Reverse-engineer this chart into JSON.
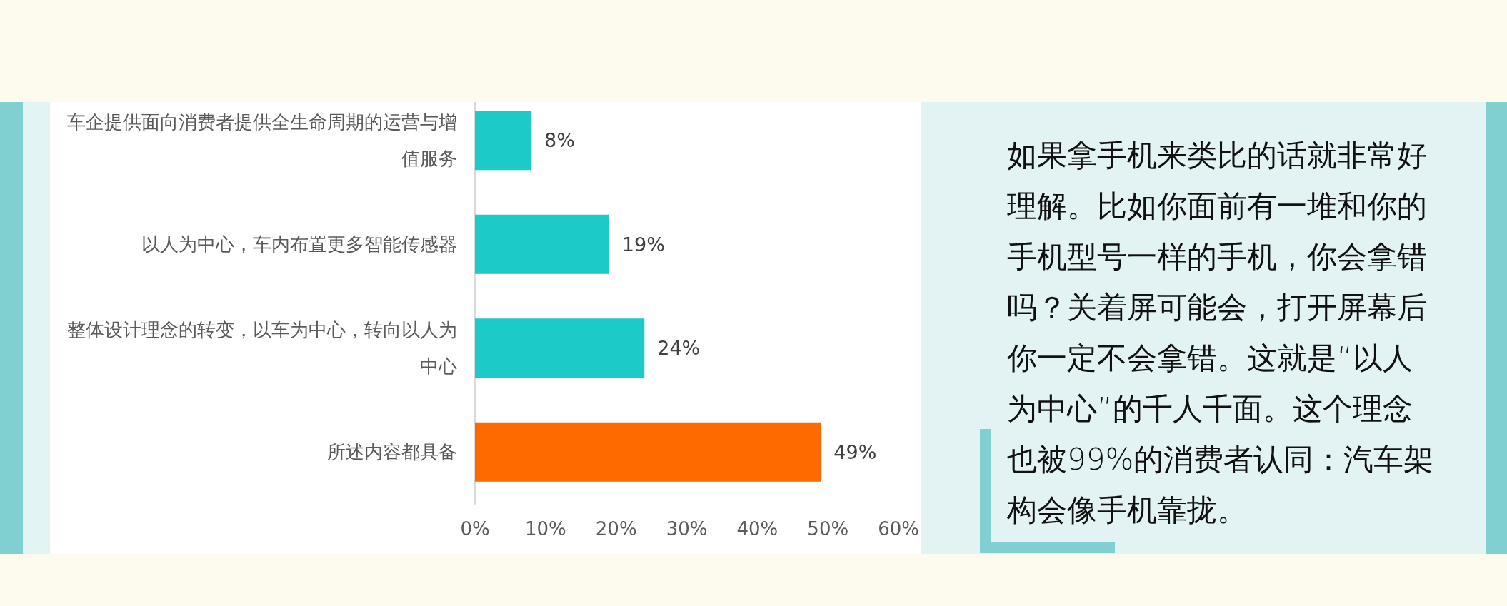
{
  "chart_data": [
    {
      "type": "bar",
      "orientation": "horizontal",
      "categories": [
        "车企提供面向消费者提供全生命周期的运营与增值服务",
        "以人为中心，车内布置更多智能传感器",
        "整体设计理念的转变，以车为中心，转向以人为中心",
        "所述内容都具备"
      ],
      "values": [
        8,
        19,
        24,
        49
      ],
      "colors": [
        "#1ccac8",
        "#1ccac8",
        "#1ccac8",
        "#ff6a00"
      ],
      "value_labels": [
        "8%",
        "19%",
        "24%",
        "49%"
      ],
      "xlim": [
        0,
        60
      ],
      "xticks": [
        {
          "value": 0,
          "label": "0%"
        },
        {
          "value": 10,
          "label": "10%"
        },
        {
          "value": 20,
          "label": "20%"
        },
        {
          "value": 30,
          "label": "30%"
        },
        {
          "value": 40,
          "label": "40%"
        },
        {
          "value": 50,
          "label": "50%"
        },
        {
          "value": 60,
          "label": "60%"
        }
      ]
    },
    {
      "type": "other",
      "annotations": [
        "如果拿手机来类比的话就非常好理解。比如你面前有一堆和你的手机型号一样的手机，你会拿错吗？关着屏可能会，打开屏幕后你一定不会拿错。这就是“以人为中心”的千人千面。这个理念也被99%的消费者认同：汽车架构会像手机靠拢。"
      ]
    }
  ]
}
